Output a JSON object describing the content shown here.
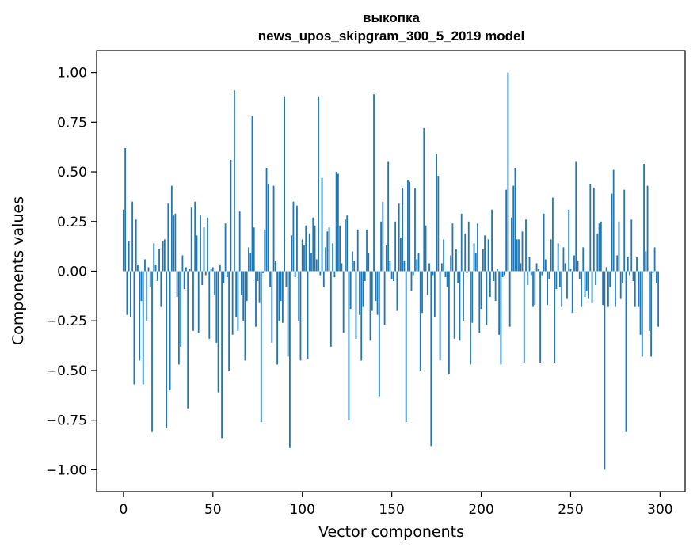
{
  "chart_data": {
    "type": "bar",
    "title_line1": "выкопка",
    "title_line2": "news_upos_skipgram_300_5_2019 model",
    "xlabel": "Vector components",
    "ylabel": "Components values",
    "xlim": [
      -15,
      314
    ],
    "ylim": [
      -1.11,
      1.11
    ],
    "xticks": [
      0,
      50,
      100,
      150,
      200,
      250,
      300
    ],
    "yticks": [
      1.0,
      0.75,
      0.5,
      0.25,
      0.0,
      -0.25,
      -0.5,
      -0.75,
      -1.0
    ],
    "xtick_labels": [
      "0",
      "50",
      "100",
      "150",
      "200",
      "250",
      "300"
    ],
    "ytick_labels": [
      "1.00",
      "0.75",
      "0.50",
      "0.25",
      "0.00",
      "−0.25",
      "−0.50",
      "−0.75",
      "−1.00"
    ],
    "bar_color": "#1f77b4",
    "values": [
      0.31,
      0.62,
      -0.22,
      0.15,
      -0.23,
      0.35,
      -0.57,
      0.26,
      0.03,
      -0.45,
      -0.15,
      -0.57,
      0.06,
      -0.25,
      0.02,
      -0.08,
      -0.81,
      0.14,
      0.03,
      -0.05,
      0.11,
      -0.18,
      0.15,
      0.16,
      -0.79,
      0.34,
      -0.6,
      0.43,
      0.28,
      0.29,
      -0.13,
      -0.47,
      -0.38,
      0.08,
      -0.09,
      0.02,
      -0.69,
      0.01,
      0.32,
      -0.3,
      0.35,
      0.18,
      -0.31,
      0.28,
      -0.07,
      0.22,
      -0.02,
      0.27,
      -0.34,
      0.01,
      0.02,
      -0.12,
      -0.36,
      -0.61,
      0.03,
      -0.84,
      -0.06,
      0.24,
      -0.03,
      -0.5,
      0.56,
      -0.32,
      0.91,
      -0.23,
      -0.3,
      0.3,
      -0.12,
      -0.25,
      -0.45,
      -0.15,
      0.12,
      0.09,
      0.78,
      0.22,
      -0.28,
      -0.05,
      -0.16,
      -0.76,
      -0.01,
      0.21,
      0.52,
      0.44,
      -0.08,
      -0.36,
      0.43,
      0.05,
      -0.47,
      -0.25,
      -0.15,
      -0.26,
      0.88,
      -0.08,
      -0.43,
      -0.89,
      0.18,
      0.35,
      -0.03,
      0.33,
      -0.25,
      -0.45,
      0.16,
      0.13,
      0.23,
      -0.44,
      0.19,
      0.09,
      0.27,
      0.23,
      0.06,
      0.88,
      -0.02,
      0.47,
      -0.08,
      0.12,
      0.2,
      0.22,
      -0.38,
      0.14,
      -0.03,
      0.5,
      0.49,
      0.23,
      0.04,
      -0.31,
      0.26,
      0.28,
      -0.75,
      -0.19,
      0.1,
      0.05,
      -0.34,
      0.21,
      -0.22,
      -0.45,
      -0.18,
      -0.05,
      0.21,
      0.09,
      -0.35,
      -0.2,
      0.89,
      -0.15,
      -0.22,
      -0.63,
      0.25,
      0.35,
      -0.27,
      0.13,
      0.55,
      0.05,
      -0.04,
      -0.05,
      0.25,
      -0.2,
      0.34,
      0.17,
      0.42,
      0.05,
      -0.76,
      0.46,
      0.45,
      -0.1,
      -0.02,
      0.42,
      0.06,
      0.09,
      -0.5,
      -0.21,
      0.72,
      0.23,
      -0.12,
      0.04,
      -0.88,
      -0.02,
      -0.23,
      0.59,
      0.48,
      -0.45,
      0.04,
      0.16,
      -0.03,
      -0.08,
      -0.52,
      0.08,
      0.24,
      -0.34,
      0.11,
      -0.06,
      -0.35,
      0.29,
      -0.25,
      0.19,
      -0.01,
      0.25,
      -0.47,
      -0.26,
      0.14,
      0.09,
      0.24,
      -0.31,
      -0.19,
      0.11,
      0.18,
      -0.27,
      0.16,
      -0.13,
      0.31,
      -0.05,
      -0.15,
      0.01,
      -0.32,
      -0.47,
      -0.03,
      -0.02,
      0.41,
      1.0,
      -0.28,
      0.27,
      0.43,
      0.52,
      0.16,
      0.16,
      0.04,
      0.2,
      -0.46,
      0.26,
      -0.07,
      0.07,
      -0.02,
      -0.18,
      -0.17,
      0.04,
      0.01,
      -0.46,
      -0.02,
      0.29,
      0.06,
      -0.17,
      -0.04,
      0.16,
      0.37,
      -0.46,
      -0.09,
      0.14,
      -0.08,
      -0.18,
      0.12,
      0.04,
      -0.14,
      0.31,
      0.01,
      -0.21,
      0.08,
      0.55,
      0.05,
      -0.04,
      -0.18,
      0.12,
      -0.13,
      -0.1,
      -0.14,
      0.44,
      -0.16,
      0.42,
      -0.07,
      0.19,
      0.24,
      0.25,
      -0.17,
      -1.0,
      0.02,
      -0.18,
      -0.08,
      0.39,
      0.51,
      -0.18,
      0.08,
      0.25,
      -0.14,
      -0.06,
      0.41,
      -0.81,
      0.07,
      -0.02,
      0.26,
      -0.05,
      -0.18,
      0.07,
      -0.18,
      -0.32,
      -0.43,
      0.54,
      0.1,
      0.43,
      -0.3,
      -0.43,
      -0.01,
      0.12,
      -0.06,
      -0.28
    ]
  }
}
